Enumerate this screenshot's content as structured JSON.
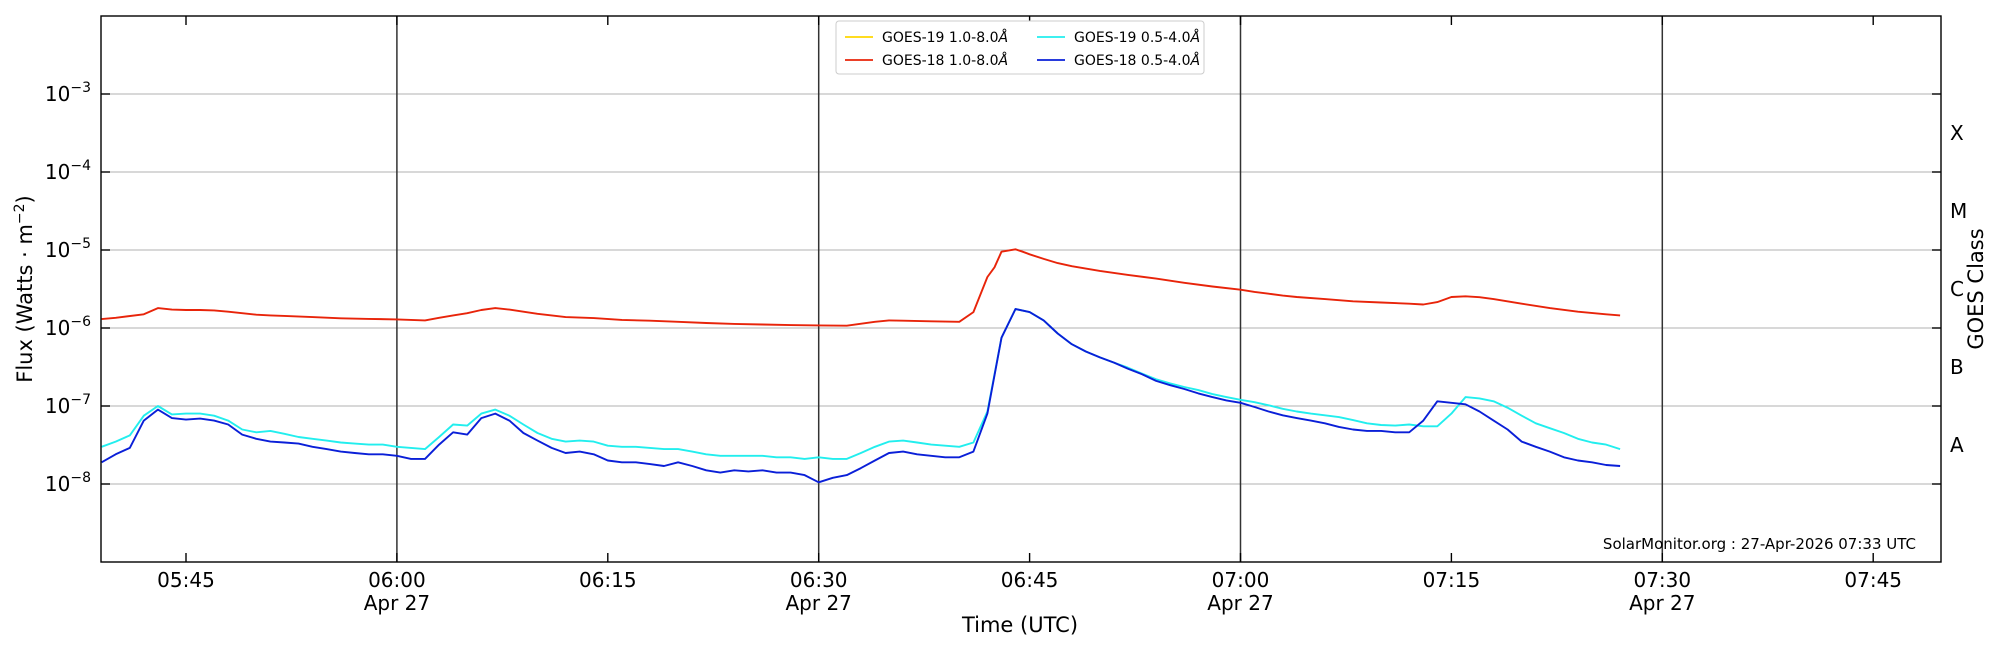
{
  "chart_data": {
    "type": "line",
    "xlabel": "Time (UTC)",
    "ylabel_main": "Flux (Watts · m",
    "ylabel_sup": "−2",
    "ylabel_close": ")",
    "right_axis_label": "GOES Class",
    "credit": "SolarMonitor.org : 27-Apr-2026 07:33 UTC",
    "y_scale": "log",
    "ylim": [
      1e-09,
      0.01
    ],
    "x_range_minutes": [
      339,
      405
    ],
    "x_unit": "minutes after 00:00 UTC, 27-Apr-2026",
    "grid": "horizontal",
    "legend_placement": "top-center",
    "y_ticks": [
      {
        "exp": "−8",
        "value": 1e-08
      },
      {
        "exp": "−7",
        "value": 1e-07
      },
      {
        "exp": "−6",
        "value": 1e-06
      },
      {
        "exp": "−5",
        "value": 1e-05
      },
      {
        "exp": "−4",
        "value": 0.0001
      },
      {
        "exp": "−3",
        "value": 0.001
      }
    ],
    "y_tick_base": "10",
    "x_ticks": [
      {
        "minute": 345,
        "label": "05:45",
        "date": ""
      },
      {
        "minute": 360,
        "label": "06:00",
        "date": "Apr 27"
      },
      {
        "minute": 375,
        "label": "06:15",
        "date": ""
      },
      {
        "minute": 390,
        "label": "06:30",
        "date": "Apr 27"
      },
      {
        "minute": 405,
        "label": "06:45",
        "date": ""
      },
      {
        "minute": 420,
        "label": "07:00",
        "date": "Apr 27"
      },
      {
        "minute": 435,
        "label": "07:15",
        "date": ""
      },
      {
        "minute": 450,
        "label": "07:30",
        "date": "Apr 27"
      },
      {
        "minute": 465,
        "label": "07:45",
        "date": ""
      }
    ],
    "vertical_lines_minutes": [
      360,
      390,
      420,
      450
    ],
    "goes_classes": [
      {
        "label": "A",
        "value": 3.16e-08
      },
      {
        "label": "B",
        "value": 3.16e-07
      },
      {
        "label": "C",
        "value": 3.16e-06
      },
      {
        "label": "M",
        "value": 3.16e-05
      },
      {
        "label": "X",
        "value": 0.000316
      }
    ],
    "legend": [
      {
        "name": "GOES-19 1.0-8.0",
        "color": "#ffd700",
        "series": "g19_long"
      },
      {
        "name": "GOES-18 1.0-8.0",
        "color": "#e8240a",
        "series": "g18_long"
      },
      {
        "name": "GOES-19 0.5-4.0",
        "color": "#22eeee",
        "series": "g19_short"
      },
      {
        "name": "GOES-18 0.5-4.0",
        "color": "#0a1fd8",
        "series": "g18_short"
      }
    ],
    "legend_unit": "Å",
    "series": [
      {
        "id": "g18_long",
        "name": "GOES-18 1.0-8.0Å",
        "color": "#e8240a",
        "x": [
          339,
          340,
          342,
          343,
          344,
          345,
          346,
          347,
          348,
          349,
          350,
          351,
          352,
          354,
          356,
          358,
          360,
          361,
          362,
          363,
          364,
          365,
          366,
          367,
          368,
          369,
          370,
          371,
          372,
          374,
          376,
          378,
          380,
          382,
          384,
          386,
          388,
          390,
          392,
          394,
          395,
          396,
          398,
          400,
          401,
          402,
          402.5,
          403,
          404,
          404.5,
          405,
          406,
          407,
          408,
          410,
          412,
          414,
          416,
          418,
          420,
          421,
          422,
          423,
          424,
          426,
          428,
          430,
          432,
          433,
          434,
          435,
          436,
          437,
          438,
          440,
          442,
          444,
          446,
          447
        ],
        "y": [
          1.3e-06,
          1.35e-06,
          1.5e-06,
          1.8e-06,
          1.72e-06,
          1.7e-06,
          1.7e-06,
          1.68e-06,
          1.62e-06,
          1.55e-06,
          1.48e-06,
          1.45e-06,
          1.43e-06,
          1.38e-06,
          1.33e-06,
          1.31e-06,
          1.29e-06,
          1.27e-06,
          1.25e-06,
          1.35e-06,
          1.45e-06,
          1.55e-06,
          1.7e-06,
          1.8e-06,
          1.72e-06,
          1.62e-06,
          1.52e-06,
          1.45e-06,
          1.38e-06,
          1.34e-06,
          1.27e-06,
          1.24e-06,
          1.2e-06,
          1.16e-06,
          1.13e-06,
          1.11e-06,
          1.09e-06,
          1.08e-06,
          1.07e-06,
          1.2e-06,
          1.25e-06,
          1.24e-06,
          1.22e-06,
          1.2e-06,
          1.6e-06,
          4.5e-06,
          6e-06,
          9.5e-06,
          1.02e-05,
          9.5e-06,
          8.8e-06,
          7.7e-06,
          6.8e-06,
          6.2e-06,
          5.4e-06,
          4.8e-06,
          4.3e-06,
          3.8e-06,
          3.4e-06,
          3.1e-06,
          2.9e-06,
          2.75e-06,
          2.6e-06,
          2.5e-06,
          2.35e-06,
          2.2e-06,
          2.12e-06,
          2.05e-06,
          2e-06,
          2.15e-06,
          2.5e-06,
          2.55e-06,
          2.48e-06,
          2.35e-06,
          2.05e-06,
          1.8e-06,
          1.62e-06,
          1.5e-06,
          1.45e-06
        ]
      },
      {
        "id": "g19_short",
        "name": "GOES-19 0.5-4.0Å",
        "color": "#22eeee",
        "x": [
          339,
          340,
          341,
          342,
          343,
          344,
          345,
          346,
          347,
          348,
          349,
          350,
          351,
          352,
          353,
          354,
          355,
          356,
          357,
          358,
          359,
          360,
          361,
          362,
          363,
          364,
          365,
          366,
          367,
          368,
          369,
          370,
          371,
          372,
          373,
          374,
          375,
          376,
          377,
          378,
          379,
          380,
          381,
          382,
          383,
          384,
          385,
          386,
          387,
          388,
          389,
          390,
          391,
          392,
          393,
          394,
          395,
          396,
          397,
          398,
          399,
          400,
          401,
          402,
          403,
          404,
          405,
          406,
          407,
          408,
          409,
          410,
          411,
          412,
          413,
          414,
          415,
          416,
          417,
          418,
          419,
          420,
          421,
          422,
          423,
          424,
          425,
          426,
          427,
          428,
          429,
          430,
          431,
          432,
          433,
          434,
          435,
          436,
          437,
          438,
          439,
          440,
          441,
          442,
          443,
          444,
          445,
          446,
          447
        ],
        "y": [
          3e-08,
          3.5e-08,
          4.2e-08,
          7.5e-08,
          1e-07,
          7.8e-08,
          8e-08,
          8e-08,
          7.5e-08,
          6.5e-08,
          5e-08,
          4.6e-08,
          4.8e-08,
          4.4e-08,
          4e-08,
          3.8e-08,
          3.6e-08,
          3.4e-08,
          3.3e-08,
          3.2e-08,
          3.2e-08,
          3e-08,
          2.9e-08,
          2.8e-08,
          4e-08,
          5.8e-08,
          5.6e-08,
          8e-08,
          9e-08,
          7.5e-08,
          5.8e-08,
          4.5e-08,
          3.8e-08,
          3.5e-08,
          3.6e-08,
          3.5e-08,
          3.1e-08,
          3e-08,
          3e-08,
          2.9e-08,
          2.8e-08,
          2.8e-08,
          2.6e-08,
          2.4e-08,
          2.3e-08,
          2.3e-08,
          2.3e-08,
          2.3e-08,
          2.2e-08,
          2.2e-08,
          2.1e-08,
          2.2e-08,
          2.1e-08,
          2.1e-08,
          2.5e-08,
          3e-08,
          3.5e-08,
          3.6e-08,
          3.4e-08,
          3.2e-08,
          3.1e-08,
          3e-08,
          3.4e-08,
          8.5e-08,
          7.5e-07,
          1.75e-06,
          1.6e-06,
          1.25e-06,
          8.5e-07,
          6.2e-07,
          5e-07,
          4.2e-07,
          3.6e-07,
          3.1e-07,
          2.6e-07,
          2.2e-07,
          1.95e-07,
          1.75e-07,
          1.6e-07,
          1.42e-07,
          1.3e-07,
          1.2e-07,
          1.12e-07,
          1.02e-07,
          9.2e-08,
          8.5e-08,
          8e-08,
          7.6e-08,
          7.2e-08,
          6.6e-08,
          6e-08,
          5.7e-08,
          5.6e-08,
          5.8e-08,
          5.5e-08,
          5.5e-08,
          8e-08,
          1.3e-07,
          1.25e-07,
          1.15e-07,
          9.5e-08,
          7.5e-08,
          6e-08,
          5.2e-08,
          4.5e-08,
          3.8e-08,
          3.4e-08,
          3.2e-08,
          2.8e-08
        ]
      },
      {
        "id": "g18_short",
        "name": "GOES-18 0.5-4.0Å",
        "color": "#0a1fd8",
        "x": [
          339,
          340,
          341,
          342,
          343,
          344,
          345,
          346,
          347,
          348,
          349,
          350,
          351,
          352,
          353,
          354,
          355,
          356,
          357,
          358,
          359,
          360,
          361,
          362,
          363,
          364,
          365,
          366,
          367,
          368,
          369,
          370,
          371,
          372,
          373,
          374,
          375,
          376,
          377,
          378,
          379,
          380,
          381,
          382,
          383,
          384,
          385,
          386,
          387,
          388,
          389,
          390,
          391,
          392,
          393,
          394,
          395,
          396,
          397,
          398,
          399,
          400,
          401,
          402,
          403,
          404,
          405,
          406,
          407,
          408,
          409,
          410,
          411,
          412,
          413,
          414,
          415,
          416,
          417,
          418,
          419,
          420,
          421,
          422,
          423,
          424,
          425,
          426,
          427,
          428,
          429,
          430,
          431,
          432,
          433,
          434,
          435,
          436,
          437,
          438,
          439,
          440,
          441,
          442,
          443,
          444,
          445,
          446,
          447
        ],
        "y": [
          1.9e-08,
          2.4e-08,
          2.9e-08,
          6.5e-08,
          9e-08,
          7e-08,
          6.7e-08,
          6.9e-08,
          6.5e-08,
          5.8e-08,
          4.3e-08,
          3.8e-08,
          3.5e-08,
          3.4e-08,
          3.3e-08,
          3e-08,
          2.8e-08,
          2.6e-08,
          2.5e-08,
          2.4e-08,
          2.4e-08,
          2.3e-08,
          2.1e-08,
          2.1e-08,
          3.2e-08,
          4.6e-08,
          4.3e-08,
          7e-08,
          8e-08,
          6.5e-08,
          4.5e-08,
          3.6e-08,
          2.9e-08,
          2.5e-08,
          2.6e-08,
          2.4e-08,
          2e-08,
          1.9e-08,
          1.9e-08,
          1.8e-08,
          1.7e-08,
          1.9e-08,
          1.7e-08,
          1.5e-08,
          1.4e-08,
          1.5e-08,
          1.45e-08,
          1.5e-08,
          1.4e-08,
          1.4e-08,
          1.3e-08,
          1.05e-08,
          1.2e-08,
          1.3e-08,
          1.6e-08,
          2e-08,
          2.5e-08,
          2.6e-08,
          2.4e-08,
          2.3e-08,
          2.2e-08,
          2.2e-08,
          2.6e-08,
          8e-08,
          7.5e-07,
          1.75e-06,
          1.6e-06,
          1.25e-06,
          8.5e-07,
          6.2e-07,
          5e-07,
          4.2e-07,
          3.6e-07,
          3e-07,
          2.55e-07,
          2.1e-07,
          1.85e-07,
          1.65e-07,
          1.45e-07,
          1.3e-07,
          1.18e-07,
          1.1e-07,
          9.7e-08,
          8.5e-08,
          7.6e-08,
          7e-08,
          6.5e-08,
          6e-08,
          5.4e-08,
          5e-08,
          4.8e-08,
          4.8e-08,
          4.6e-08,
          4.6e-08,
          6.5e-08,
          1.15e-07,
          1.1e-07,
          1.05e-07,
          8.5e-08,
          6.5e-08,
          5e-08,
          3.5e-08,
          3e-08,
          2.6e-08,
          2.2e-08,
          2e-08,
          1.9e-08,
          1.75e-08,
          1.7e-08
        ]
      }
    ]
  }
}
